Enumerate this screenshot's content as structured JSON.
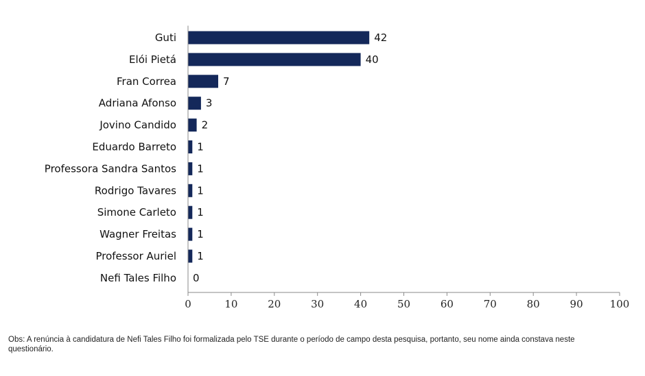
{
  "chart_data": {
    "type": "bar",
    "orientation": "horizontal",
    "categories": [
      "Guti",
      "Elói Pietá",
      "Fran Correa",
      "Adriana Afonso",
      "Jovino Candido",
      "Eduardo Barreto",
      "Professora Sandra Santos",
      "Rodrigo Tavares",
      "Simone Carleto",
      "Wagner Freitas",
      "Professor Auriel",
      "Nefi Tales Filho"
    ],
    "values": [
      42,
      40,
      7,
      3,
      2,
      1,
      1,
      1,
      1,
      1,
      1,
      0
    ],
    "xlim": [
      0,
      100
    ],
    "xticks": [
      0,
      10,
      20,
      30,
      40,
      50,
      60,
      70,
      80,
      90,
      100
    ],
    "grid": false,
    "bar_color": "#14285a"
  },
  "footnote": "Obs: A renúncia à candidatura de Nefi Tales Filho foi formalizada pelo TSE durante o período de campo desta pesquisa, portanto, seu nome ainda constava neste questionário."
}
